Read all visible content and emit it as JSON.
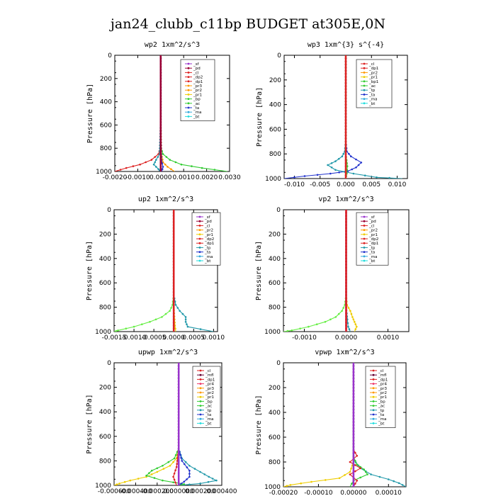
{
  "title": "jan24_clubb_c11bp  BUDGET at305E,0N",
  "colors": {
    "purple": "#9933cc",
    "darkred": "#990033",
    "red": "#dd2222",
    "orange": "#ff9900",
    "yellow": "#eecc00",
    "green": "#33cc33",
    "ltgreen": "#66ee44",
    "teal": "#2299aa",
    "blue": "#2233cc",
    "sky": "#33aadd",
    "cyan": "#22dddd",
    "maroon": "#660033",
    "pink": "#ee3366"
  },
  "chart_data": [
    {
      "type": "line",
      "title": "wp2   1xm^2/s^3",
      "ylabel": "Pressure [hPa]",
      "xlim": [
        -0.002,
        0.003
      ],
      "ylim": [
        1000,
        0
      ],
      "xticks": [
        "-0.0020",
        "-0.0010",
        "0.0000",
        "0.0010",
        "0.0020",
        "0.0030"
      ],
      "yticks": [
        "0",
        "200",
        "400",
        "600",
        "800",
        "1000"
      ],
      "legend": [
        "_sf",
        "_pd",
        "_cl",
        "_dp2",
        "_dp1",
        "_pr3",
        "_pr2",
        "_pr1",
        "_bp",
        "_ac",
        "_ta",
        "_ma",
        "_bt"
      ],
      "series": [
        {
          "name": "_dp1",
          "color": "red",
          "y": [
            0,
            300,
            600,
            800,
            850,
            900,
            940,
            970,
            1000
          ],
          "x": [
            0,
            0,
            0,
            -2e-05,
            -0.0001,
            -0.0004,
            -0.0009,
            -0.0015,
            -0.002
          ]
        },
        {
          "name": "_pr1",
          "color": "green",
          "y": [
            0,
            300,
            600,
            800,
            850,
            900,
            940,
            970,
            1000
          ],
          "x": [
            0,
            0,
            0,
            2e-05,
            0.0001,
            0.0004,
            0.0009,
            0.0018,
            0.0029
          ]
        },
        {
          "name": "_pr2",
          "color": "orange",
          "y": [
            0,
            600,
            850,
            920,
            960,
            1000
          ],
          "x": [
            0,
            0,
            3e-05,
            0.0001,
            0.0003,
            0.0006
          ]
        },
        {
          "name": "_bp",
          "color": "teal",
          "y": [
            0,
            600,
            850,
            900,
            940,
            980,
            1000
          ],
          "x": [
            0,
            0,
            -5e-05,
            -0.0002,
            -0.0003,
            -0.0001,
            0
          ]
        },
        {
          "name": "_ta",
          "color": "blue",
          "y": [
            0,
            700,
            900,
            960,
            1000
          ],
          "x": [
            0,
            0,
            3e-05,
            0.0001,
            5e-05
          ]
        },
        {
          "name": "_sf",
          "color": "purple",
          "y": [
            0,
            1000
          ],
          "x": [
            0,
            0
          ]
        },
        {
          "name": "_cl",
          "color": "darkred",
          "y": [
            0,
            1000
          ],
          "x": [
            0,
            0
          ]
        }
      ]
    },
    {
      "type": "line",
      "title": "wp3   1xm^{3} s^{-4}",
      "ylabel": "Pressure [hPa]",
      "xlim": [
        -0.012,
        0.012
      ],
      "ylim": [
        1000,
        0
      ],
      "xticks": [
        "-0.010",
        "-0.005",
        "0.000",
        "0.005",
        "0.010"
      ],
      "yticks": [
        "0",
        "200",
        "400",
        "600",
        "800",
        "1000"
      ],
      "legend": [
        "_cl",
        "_dp1",
        "_pr2",
        "_pr1",
        "_bp1",
        "_ac",
        "_tp",
        "_ta",
        "_ma",
        "_bt"
      ],
      "series": [
        {
          "name": "_tp",
          "color": "blue",
          "y": [
            0,
            700,
            780,
            820,
            870,
            910,
            940,
            960,
            980,
            1000
          ],
          "x": [
            0,
            0,
            0.0002,
            0.001,
            0.003,
            0.002,
            0.0004,
            -0.003,
            -0.008,
            -0.012
          ]
        },
        {
          "name": "_pr1",
          "color": "teal",
          "y": [
            0,
            700,
            780,
            820,
            860,
            890,
            930,
            960,
            990,
            1000
          ],
          "x": [
            0,
            0,
            -0.0002,
            -0.0007,
            -0.002,
            -0.0035,
            -0.002,
            0.0015,
            0.006,
            0.011
          ]
        },
        {
          "name": "_ac",
          "color": "green",
          "y": [
            0,
            800,
            900,
            960,
            1000
          ],
          "x": [
            0,
            0,
            0.0003,
            0.0002,
            0
          ]
        },
        {
          "name": "_dp1",
          "color": "red",
          "y": [
            0,
            1000
          ],
          "x": [
            0,
            0
          ]
        }
      ]
    },
    {
      "type": "line",
      "title": "up2   1xm^2/s^3",
      "ylabel": "Pressure [hPa]",
      "xlim": [
        -0.0015,
        0.0011
      ],
      "ylim": [
        1000,
        0
      ],
      "xticks": [
        "-0.0015",
        "-0.0010",
        "-0.0005",
        "0.0000",
        "0.0005",
        "0.0010"
      ],
      "yticks": [
        "0",
        "200",
        "400",
        "600",
        "800",
        "1000"
      ],
      "legend": [
        "_sf",
        "_pd",
        "_cl",
        "_pr2",
        "_pr1",
        "_dp2",
        "_dp1",
        "_tp",
        "_ta",
        "_ma",
        "_bt"
      ],
      "series": [
        {
          "name": "_dp1",
          "color": "ltgreen",
          "y": [
            0,
            700,
            780,
            830,
            880,
            920,
            960,
            990,
            1000
          ],
          "x": [
            0,
            0,
            -3e-05,
            -0.0001,
            -0.0003,
            -0.0006,
            -0.001,
            -0.0014,
            -0.0015
          ]
        },
        {
          "name": "_tp",
          "color": "teal",
          "y": [
            0,
            700,
            780,
            830,
            880,
            920,
            960,
            1000
          ],
          "x": [
            0,
            0,
            5e-05,
            0.00015,
            0.0003,
            0.0003,
            0.00035,
            0.001
          ]
        },
        {
          "name": "_pr1",
          "color": "yellow",
          "y": [
            0,
            800,
            950,
            1000
          ],
          "x": [
            0,
            0,
            3e-05,
            5e-05
          ]
        },
        {
          "name": "_sf",
          "color": "purple",
          "y": [
            0,
            1000
          ],
          "x": [
            0,
            0
          ]
        },
        {
          "name": "_cl",
          "color": "red",
          "y": [
            0,
            1000
          ],
          "x": [
            0,
            0
          ]
        }
      ]
    },
    {
      "type": "line",
      "title": "vp2   1xm^2/s^3",
      "ylabel": "Pressure [hPa]",
      "xlim": [
        -0.0015,
        0.0015
      ],
      "ylim": [
        1000,
        0
      ],
      "xticks": [
        "-0.0010",
        "0.0000",
        "0.0010"
      ],
      "yticks": [
        "0",
        "200",
        "400",
        "600",
        "800",
        "1000"
      ],
      "legend": [
        "_sf",
        "_pd",
        "_cl",
        "_pr2",
        "_pr1",
        "_dp2",
        "_dp1",
        "_tp",
        "_ta",
        "_ma",
        "_bt"
      ],
      "series": [
        {
          "name": "_dp1",
          "color": "ltgreen",
          "y": [
            0,
            700,
            780,
            830,
            880,
            920,
            960,
            990,
            1000
          ],
          "x": [
            0,
            0,
            -3e-05,
            -0.0001,
            -0.00025,
            -0.0005,
            -0.0009,
            -0.0013,
            -0.0015
          ]
        },
        {
          "name": "_pr1",
          "color": "yellow",
          "y": [
            0,
            700,
            780,
            830,
            880,
            920,
            960,
            1000
          ],
          "x": [
            0,
            0,
            2e-05,
            0.0001,
            0.00015,
            0.0002,
            0.00025,
            0.0002
          ]
        },
        {
          "name": "_tp",
          "color": "teal",
          "y": [
            0,
            800,
            900,
            960,
            1000
          ],
          "x": [
            0,
            0,
            3e-05,
            5e-05,
            0.0001
          ]
        },
        {
          "name": "_sf",
          "color": "purple",
          "y": [
            0,
            1000
          ],
          "x": [
            0,
            0
          ]
        },
        {
          "name": "_cl",
          "color": "red",
          "y": [
            0,
            1000
          ],
          "x": [
            0,
            0
          ]
        }
      ]
    },
    {
      "type": "line",
      "title": "upwp   1xm^2/s^3",
      "ylabel": "Pressure [hPa]",
      "xlim": [
        -0.0006,
        0.0004
      ],
      "ylim": [
        1000,
        0
      ],
      "xticks": [
        "-0.000600",
        "-0.000400",
        "-0.000200",
        "0.000000",
        "0.000200",
        "0.000400"
      ],
      "yticks": [
        "0",
        "200",
        "400",
        "600",
        "800",
        "1000"
      ],
      "legend": [
        "_cl",
        "_mfl",
        "_dp1",
        "_pr4",
        "_pr3",
        "_pr2",
        "_pr1",
        "_bp",
        "_ac",
        "_tp",
        "_ta",
        "_ma",
        "_bt"
      ],
      "series": [
        {
          "name": "_pr1",
          "color": "yellow",
          "y": [
            0,
            700,
            780,
            840,
            890,
            930,
            960,
            985,
            1000
          ],
          "x": [
            0,
            0,
            -2e-05,
            -8e-05,
            -0.0002,
            -0.0003,
            -0.00045,
            -0.00055,
            -0.0006
          ]
        },
        {
          "name": "_tp",
          "color": "teal",
          "y": [
            0,
            700,
            780,
            840,
            890,
            930,
            960,
            985,
            1000
          ],
          "x": [
            0,
            0,
            3e-05,
            0.0001,
            0.0002,
            0.00028,
            0.00035,
            0.0002,
            0
          ]
        },
        {
          "name": "_bp",
          "color": "green",
          "y": [
            0,
            700,
            780,
            840,
            880,
            920,
            960,
            990,
            1000
          ],
          "x": [
            0,
            0,
            -4e-05,
            -0.00015,
            -0.00025,
            -0.0003,
            -0.00015,
            5e-05,
            0
          ]
        },
        {
          "name": "_ac",
          "color": "blue",
          "y": [
            0,
            700,
            800,
            880,
            930,
            970,
            1000
          ],
          "x": [
            0,
            0,
            3e-05,
            0.0001,
            0.0001,
            5e-05,
            0
          ]
        },
        {
          "name": "_dp1",
          "color": "red",
          "y": [
            0,
            700,
            850,
            930,
            1000
          ],
          "x": [
            0,
            0,
            -2e-05,
            -5e-05,
            -2e-05
          ]
        },
        {
          "name": "_cl",
          "color": "purple",
          "y": [
            0,
            1000
          ],
          "x": [
            0,
            0
          ]
        }
      ]
    },
    {
      "type": "line",
      "title": "vpwp   1xm^2/s^3",
      "ylabel": "Pressure [hPa]",
      "xlim": [
        -0.0002,
        0.00015
      ],
      "ylim": [
        1000,
        0
      ],
      "xticks": [
        "-0.00020",
        "-0.00010",
        "0.00000",
        "0.00010"
      ],
      "yticks": [
        "0",
        "200",
        "400",
        "600",
        "800",
        "1000"
      ],
      "legend": [
        "_cl",
        "_mfl",
        "_dp1",
        "_pr4",
        "_pr3",
        "_pr2",
        "_pr1",
        "_bp",
        "_ac",
        "_tp",
        "_ta",
        "_ma",
        "_bt"
      ],
      "series": [
        {
          "name": "_pr1",
          "color": "yellow",
          "y": [
            0,
            800,
            880,
            930,
            960,
            985,
            1000
          ],
          "x": [
            0,
            0,
            -1e-05,
            -4e-05,
            -0.00012,
            -0.00018,
            -0.0002
          ]
        },
        {
          "name": "_tp",
          "color": "teal",
          "y": [
            0,
            780,
            850,
            900,
            940,
            970,
            1000
          ],
          "x": [
            0,
            0,
            2e-05,
            5e-05,
            0.0001,
            0.00013,
            0.00015
          ]
        },
        {
          "name": "_bp",
          "color": "green",
          "y": [
            0,
            760,
            820,
            860,
            900,
            950,
            1000
          ],
          "x": [
            0,
            0,
            1e-05,
            3e-05,
            4e-05,
            0,
            -1e-05
          ]
        },
        {
          "name": "_dp1",
          "color": "red",
          "y": [
            0,
            700,
            750,
            800,
            850,
            900,
            950,
            1000
          ],
          "x": [
            0,
            0,
            1e-05,
            -1e-05,
            2e-05,
            -1e-05,
            1e-05,
            0
          ]
        },
        {
          "name": "_cl",
          "color": "purple",
          "y": [
            0,
            1000
          ],
          "x": [
            0,
            0
          ]
        }
      ]
    }
  ]
}
